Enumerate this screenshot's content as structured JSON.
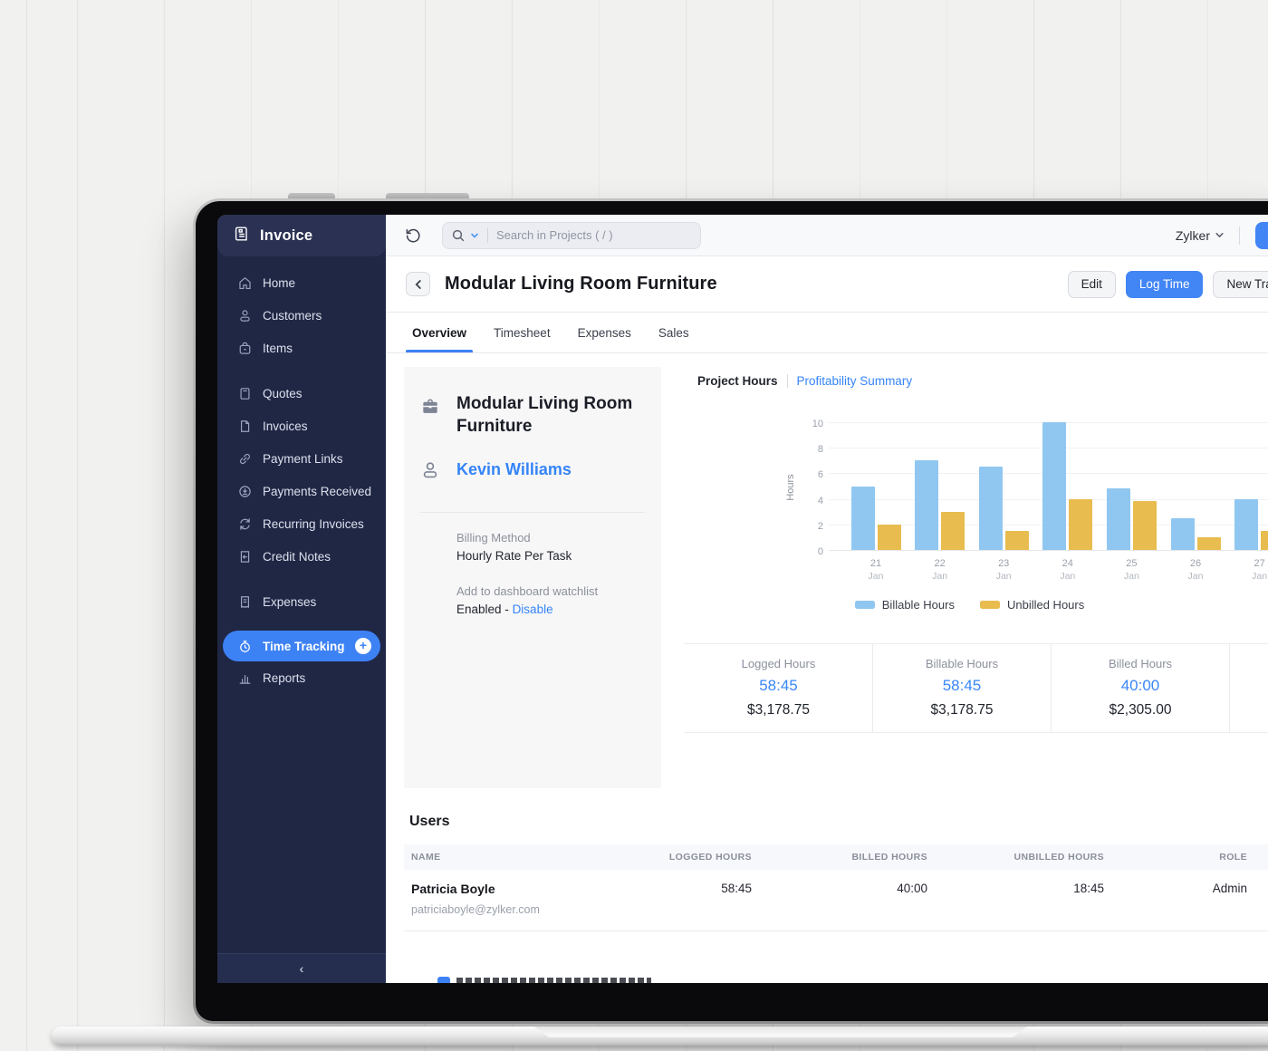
{
  "brand": {
    "app_name": "Invoice",
    "org_name": "Zylker"
  },
  "colors": {
    "accent_blue": "#4285F4",
    "link_blue": "#3584F7",
    "sidebar_bg": "#202745",
    "billable_bar": "#90C7F0",
    "unbilled_bar": "#E8BC4F"
  },
  "sidebar": {
    "items": [
      {
        "label": "Home"
      },
      {
        "label": "Customers"
      },
      {
        "label": "Items"
      },
      {
        "label": "Quotes"
      },
      {
        "label": "Invoices"
      },
      {
        "label": "Payment Links"
      },
      {
        "label": "Payments Received"
      },
      {
        "label": "Recurring Invoices"
      },
      {
        "label": "Credit Notes"
      },
      {
        "label": "Expenses"
      },
      {
        "label": "Time Tracking",
        "selected": true
      },
      {
        "label": "Reports"
      }
    ]
  },
  "topbar": {
    "search_placeholder": "Search in Projects ( / )",
    "org_name": "Zylker"
  },
  "page": {
    "title": "Modular Living Room Furniture",
    "edit_label": "Edit",
    "log_time_label": "Log Time",
    "new_transaction_label": "New Transaction"
  },
  "tabs": [
    {
      "label": "Overview",
      "active": true
    },
    {
      "label": "Timesheet"
    },
    {
      "label": "Expenses"
    },
    {
      "label": "Sales"
    }
  ],
  "project": {
    "name": "Modular Living Room Furniture",
    "customer": "Kevin Williams",
    "billing_method_label": "Billing Method",
    "billing_method": "Hourly Rate Per Task",
    "watchlist_label": "Add to dashboard watchlist",
    "watchlist_status": "Enabled -",
    "watchlist_action": "Disable"
  },
  "chart_tabs": {
    "active": "Project Hours",
    "link": "Profitability Summary"
  },
  "chart_data": {
    "type": "bar",
    "title": "Project Hours",
    "categories": [
      "21 Jan",
      "22 Jan",
      "23 Jan",
      "24 Jan",
      "25 Jan",
      "26 Jan",
      "27 Jan"
    ],
    "series": [
      {
        "name": "Billable Hours",
        "color": "#90C7F0",
        "values": [
          5,
          7,
          6.5,
          10,
          4.8,
          2.5,
          4
        ]
      },
      {
        "name": "Unbilled Hours",
        "color": "#E8BC4F",
        "values": [
          2,
          3,
          1.5,
          4,
          3.8,
          1,
          1.5
        ]
      }
    ],
    "xlabel": "",
    "ylabel": "Hours",
    "ylim": [
      0,
      10
    ],
    "ytick_step": 2,
    "grid": true,
    "legend_position": "bottom"
  },
  "stats": [
    {
      "label": "Logged Hours",
      "hours": "58:45",
      "amount": "$3,178.75"
    },
    {
      "label": "Billable Hours",
      "hours": "58:45",
      "amount": "$3,178.75"
    },
    {
      "label": "Billed Hours",
      "hours": "40:00",
      "amount": "$2,305.00"
    }
  ],
  "users": {
    "title": "Users",
    "columns": [
      "NAME",
      "LOGGED HOURS",
      "BILLED HOURS",
      "UNBILLED HOURS",
      "ROLE"
    ],
    "rows": [
      {
        "name": "Patricia Boyle",
        "email": "patriciaboyle@zylker.com",
        "logged": "58:45",
        "billed": "40:00",
        "unbilled": "18:45",
        "role": "Admin"
      }
    ]
  }
}
